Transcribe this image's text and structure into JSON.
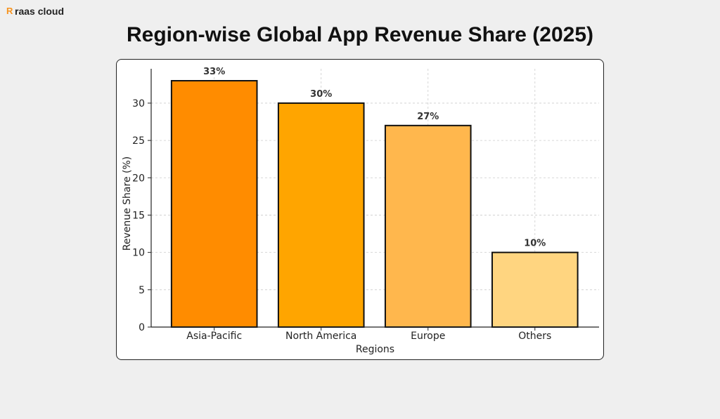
{
  "brand": {
    "logo_text": "raas cloud"
  },
  "chart_data": {
    "type": "bar",
    "title": "Region-wise Global App Revenue Share (2025)",
    "xlabel": "Regions",
    "ylabel": "Revenue Share (%)",
    "categories": [
      "Asia-Pacific",
      "North America",
      "Europe",
      "Others"
    ],
    "values": [
      33,
      30,
      27,
      10
    ],
    "data_labels": [
      "33%",
      "30%",
      "27%",
      "10%"
    ],
    "colors": [
      "#FF8C00",
      "#FFA500",
      "#FFB74D",
      "#FFD580"
    ],
    "yticks": [
      0,
      5,
      10,
      15,
      20,
      25,
      30
    ],
    "ylim": [
      0,
      34.6
    ],
    "grid": true
  }
}
